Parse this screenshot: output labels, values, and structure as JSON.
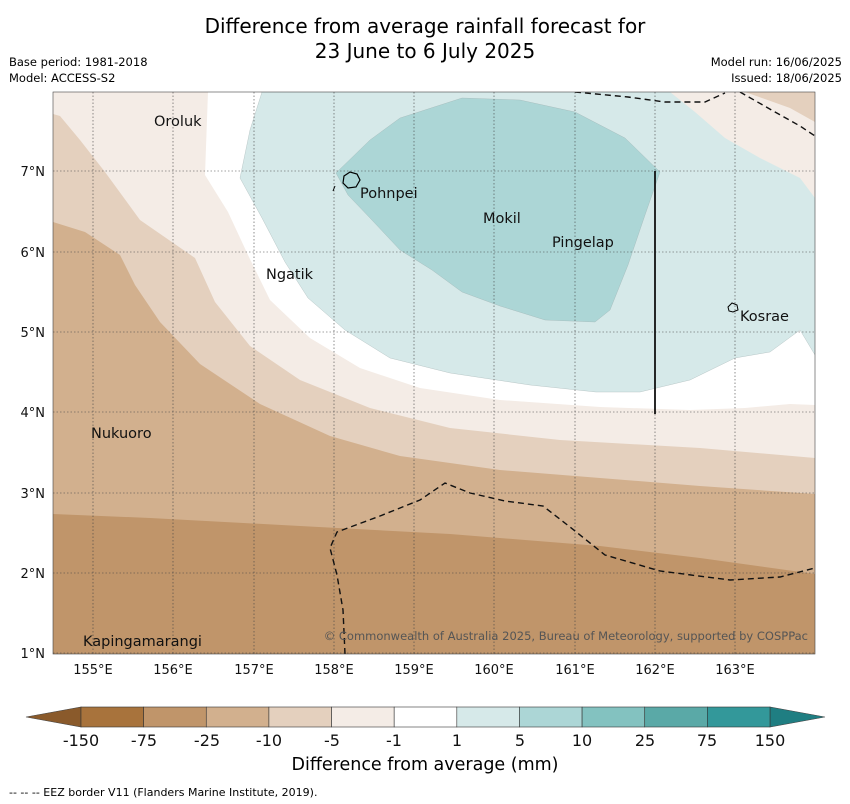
{
  "title": {
    "line1": "Difference from average rainfall forecast for",
    "line2": "23 June to 6 July 2025"
  },
  "meta": {
    "base_period": "Base period: 1981-2018",
    "model": "Model: ACCESS-S2",
    "model_run": "Model run: 16/06/2025",
    "issued": "Issued: 18/06/2025"
  },
  "map": {
    "lon_ticks": [
      "155°E",
      "156°E",
      "157°E",
      "158°E",
      "159°E",
      "160°E",
      "161°E",
      "162°E",
      "163°E"
    ],
    "lat_ticks": [
      "7°N",
      "6°N",
      "5°N",
      "4°N",
      "3°N",
      "2°N",
      "1°N"
    ],
    "places": {
      "oroluk": "Oroluk",
      "pohnpei": "Pohnpei",
      "mokil": "Mokil",
      "pingelap": "Pingelap",
      "ngatik": "Ngatik",
      "kosrae": "Kosrae",
      "nukuoro": "Nukuoro",
      "kapingamarangi": "Kapingamarangi"
    },
    "copyright": "© Commonwealth of Australia 2025, Bureau of Meteorology, supported by COSPPac"
  },
  "colorbar": {
    "labels": [
      "-150",
      "-75",
      "-25",
      "-10",
      "-5",
      "-1",
      "1",
      "5",
      "10",
      "25",
      "75",
      "150"
    ],
    "colors": [
      "#a8733c",
      "#c0956a",
      "#d2b08e",
      "#e4d0be",
      "#f4ece6",
      "#ffffff",
      "#d6e9e9",
      "#acd6d6",
      "#83c2c0",
      "#5aa9a7",
      "#33989a"
    ],
    "title": "Difference from average (mm)"
  },
  "footer": {
    "eez_note": "--  --  -- EEZ border V11 (Flanders Marine Institute, 2019)."
  }
}
